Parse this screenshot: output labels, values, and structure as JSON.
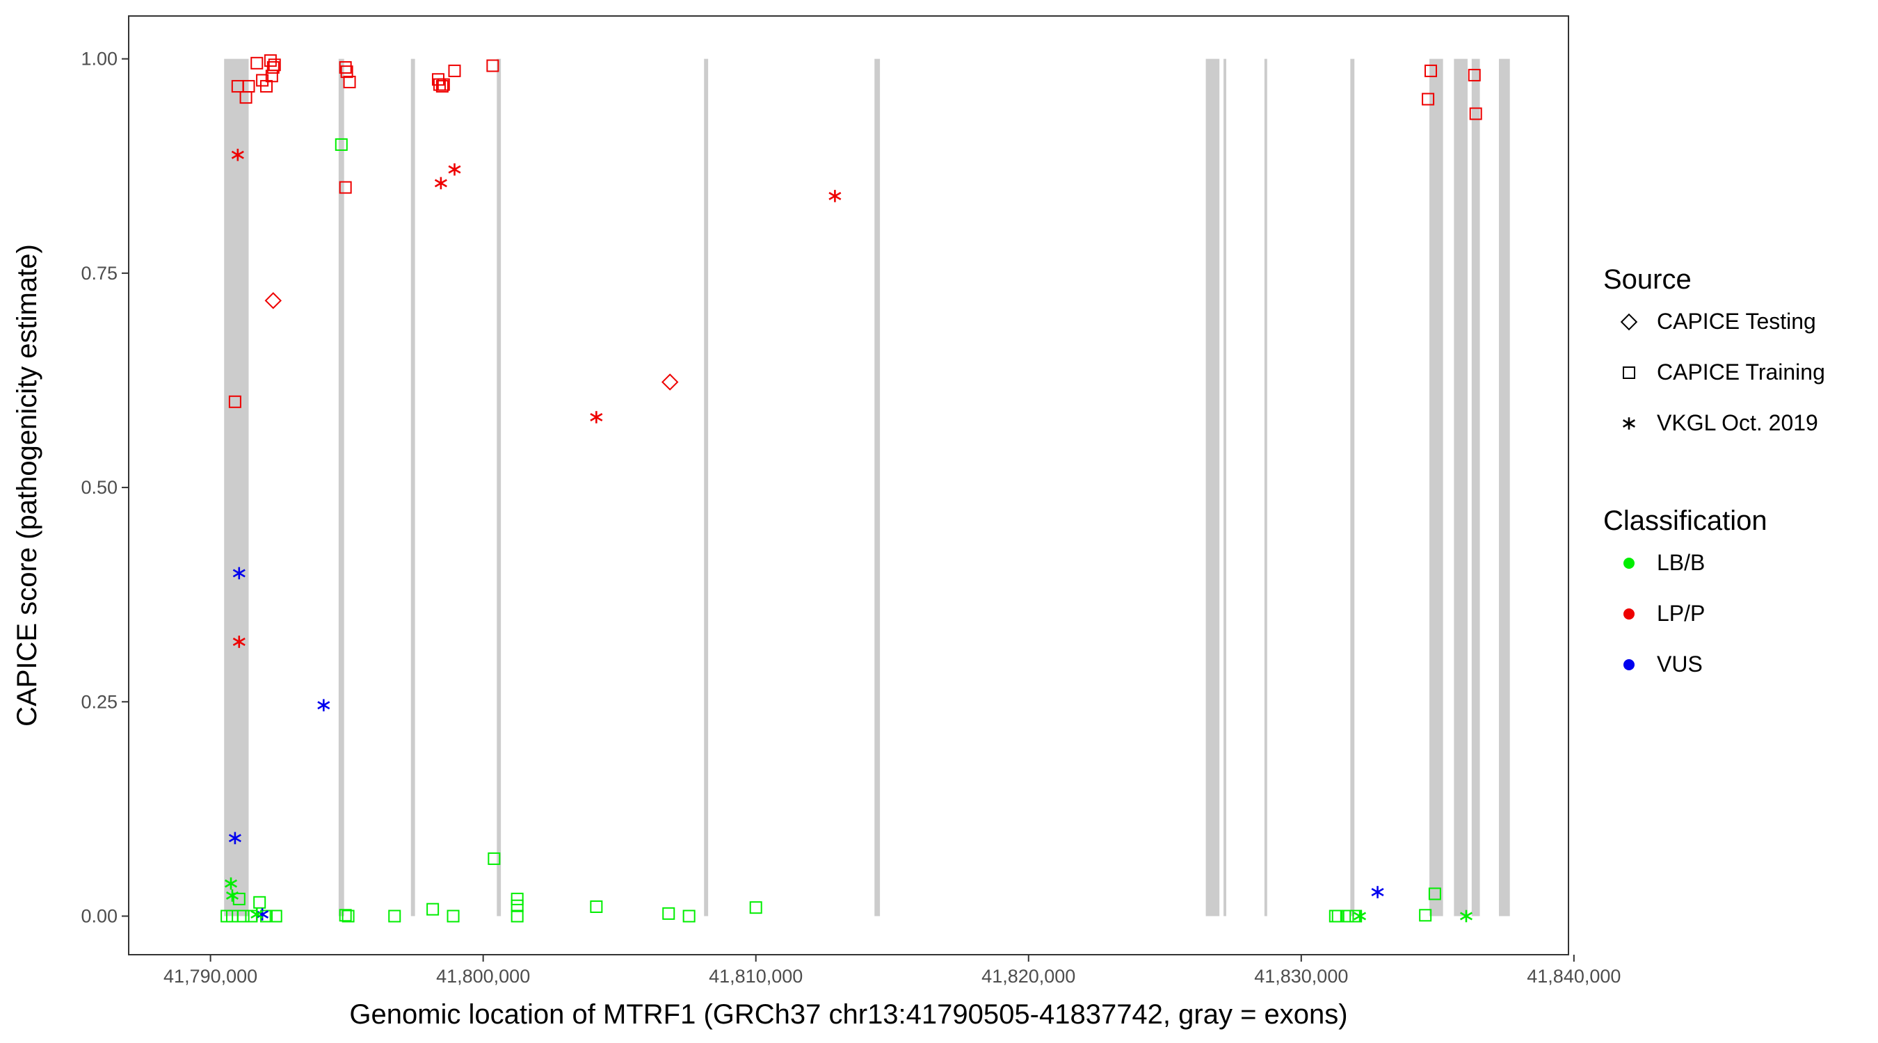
{
  "chart_data": {
    "type": "scatter",
    "xlabel": "Genomic location of MTRF1 (GRCh37 chr13:41790505-41837742, gray = exons)",
    "ylabel": "CAPICE score (pathogenicity estimate)",
    "xlim": [
      41787000,
      41839800
    ],
    "ylim": [
      -0.045,
      1.05
    ],
    "x_ticks": [
      41790000,
      41800000,
      41810000,
      41820000,
      41830000,
      41840000
    ],
    "x_tick_labels": [
      "41,790,000",
      "41,800,000",
      "41,810,000",
      "41,820,000",
      "41,830,000",
      "41,840,000"
    ],
    "y_ticks": [
      0,
      0.25,
      0.5,
      0.75,
      1.0
    ],
    "y_tick_labels": [
      "0.00",
      "0.25",
      "0.50",
      "0.75",
      "1.00"
    ],
    "grid": false,
    "exon_color": "#cccccc",
    "exons": [
      [
        41790500,
        41791400
      ],
      [
        41794700,
        41794900
      ],
      [
        41797350,
        41797500
      ],
      [
        41800500,
        41800650
      ],
      [
        41808100,
        41808250
      ],
      [
        41814350,
        41814550
      ],
      [
        41826500,
        41827000
      ],
      [
        41827150,
        41827250
      ],
      [
        41828650,
        41828750
      ],
      [
        41831800,
        41831950
      ],
      [
        41834700,
        41835200
      ],
      [
        41835600,
        41836100
      ],
      [
        41836250,
        41836550
      ],
      [
        41837250,
        41837650
      ]
    ],
    "legend": [
      {
        "title": "Source",
        "items": [
          {
            "label": "CAPICE Testing",
            "shape": "diamond"
          },
          {
            "label": "CAPICE Training",
            "shape": "square"
          },
          {
            "label": "VKGL Oct. 2019",
            "shape": "asterisk"
          }
        ]
      },
      {
        "title": "Classification",
        "items": [
          {
            "label": "LB/B",
            "color": "#00ee00"
          },
          {
            "label": "LP/P",
            "color": "#ee0000"
          },
          {
            "label": "VUS",
            "color": "#0000ee"
          }
        ]
      }
    ],
    "legend_position": "right",
    "class_colors": {
      "LB/B": "#00ee00",
      "LP/P": "#ee0000",
      "VUS": "#0000ee"
    },
    "points": [
      {
        "x": 41790900,
        "y": 0.6,
        "source": "CAPICE Training",
        "class": "LP/P"
      },
      {
        "x": 41791000,
        "y": 0.968,
        "source": "CAPICE Training",
        "class": "LP/P"
      },
      {
        "x": 41791300,
        "y": 0.955,
        "source": "CAPICE Training",
        "class": "LP/P"
      },
      {
        "x": 41791400,
        "y": 0.968,
        "source": "CAPICE Training",
        "class": "LP/P"
      },
      {
        "x": 41791700,
        "y": 0.995,
        "source": "CAPICE Training",
        "class": "LP/P"
      },
      {
        "x": 41791900,
        "y": 0.975,
        "source": "CAPICE Training",
        "class": "LP/P"
      },
      {
        "x": 41792050,
        "y": 0.968,
        "source": "CAPICE Training",
        "class": "LP/P"
      },
      {
        "x": 41792200,
        "y": 0.998,
        "source": "CAPICE Training",
        "class": "LP/P"
      },
      {
        "x": 41792250,
        "y": 0.98,
        "source": "CAPICE Training",
        "class": "LP/P"
      },
      {
        "x": 41792300,
        "y": 0.99,
        "source": "CAPICE Training",
        "class": "LP/P"
      },
      {
        "x": 41792350,
        "y": 0.993,
        "source": "CAPICE Training",
        "class": "LP/P"
      },
      {
        "x": 41794950,
        "y": 0.99,
        "source": "CAPICE Training",
        "class": "LP/P"
      },
      {
        "x": 41795000,
        "y": 0.985,
        "source": "CAPICE Training",
        "class": "LP/P"
      },
      {
        "x": 41795100,
        "y": 0.973,
        "source": "CAPICE Training",
        "class": "LP/P"
      },
      {
        "x": 41794950,
        "y": 0.85,
        "source": "CAPICE Training",
        "class": "LP/P"
      },
      {
        "x": 41798350,
        "y": 0.976,
        "source": "CAPICE Training",
        "class": "LP/P"
      },
      {
        "x": 41798400,
        "y": 0.97,
        "source": "CAPICE Training",
        "class": "LP/P"
      },
      {
        "x": 41798500,
        "y": 0.968,
        "source": "CAPICE Training",
        "class": "LP/P"
      },
      {
        "x": 41798550,
        "y": 0.97,
        "source": "CAPICE Training",
        "class": "LP/P"
      },
      {
        "x": 41798950,
        "y": 0.986,
        "source": "CAPICE Training",
        "class": "LP/P"
      },
      {
        "x": 41800350,
        "y": 0.992,
        "source": "CAPICE Training",
        "class": "LP/P"
      },
      {
        "x": 41834650,
        "y": 0.953,
        "source": "CAPICE Training",
        "class": "LP/P"
      },
      {
        "x": 41834750,
        "y": 0.986,
        "source": "CAPICE Training",
        "class": "LP/P"
      },
      {
        "x": 41836350,
        "y": 0.981,
        "source": "CAPICE Training",
        "class": "LP/P"
      },
      {
        "x": 41836400,
        "y": 0.936,
        "source": "CAPICE Training",
        "class": "LP/P"
      },
      {
        "x": 41794800,
        "y": 0.9,
        "source": "CAPICE Training",
        "class": "LB/B"
      },
      {
        "x": 41800400,
        "y": 0.067,
        "source": "CAPICE Training",
        "class": "LB/B"
      },
      {
        "x": 41790600,
        "y": 0.0,
        "source": "CAPICE Training",
        "class": "LB/B"
      },
      {
        "x": 41790800,
        "y": 0.0,
        "source": "CAPICE Training",
        "class": "LB/B"
      },
      {
        "x": 41791050,
        "y": 0.02,
        "source": "CAPICE Training",
        "class": "LB/B"
      },
      {
        "x": 41791200,
        "y": 0.0,
        "source": "CAPICE Training",
        "class": "LB/B"
      },
      {
        "x": 41791500,
        "y": 0.0,
        "source": "CAPICE Training",
        "class": "LB/B"
      },
      {
        "x": 41791800,
        "y": 0.016,
        "source": "CAPICE Training",
        "class": "LB/B"
      },
      {
        "x": 41792050,
        "y": 0.0,
        "source": "CAPICE Training",
        "class": "LB/B"
      },
      {
        "x": 41792400,
        "y": 0.0,
        "source": "CAPICE Training",
        "class": "LB/B"
      },
      {
        "x": 41794950,
        "y": 0.001,
        "source": "CAPICE Training",
        "class": "LB/B"
      },
      {
        "x": 41795050,
        "y": 0.0,
        "source": "CAPICE Training",
        "class": "LB/B"
      },
      {
        "x": 41796750,
        "y": 0.0,
        "source": "CAPICE Training",
        "class": "LB/B"
      },
      {
        "x": 41798150,
        "y": 0.008,
        "source": "CAPICE Training",
        "class": "LB/B"
      },
      {
        "x": 41798900,
        "y": 0.0,
        "source": "CAPICE Training",
        "class": "LB/B"
      },
      {
        "x": 41801250,
        "y": 0.02,
        "source": "CAPICE Training",
        "class": "LB/B"
      },
      {
        "x": 41801250,
        "y": 0.012,
        "source": "CAPICE Training",
        "class": "LB/B"
      },
      {
        "x": 41801250,
        "y": 0.0,
        "source": "CAPICE Training",
        "class": "LB/B"
      },
      {
        "x": 41804150,
        "y": 0.011,
        "source": "CAPICE Training",
        "class": "LB/B"
      },
      {
        "x": 41806800,
        "y": 0.003,
        "source": "CAPICE Training",
        "class": "LB/B"
      },
      {
        "x": 41807550,
        "y": 0.0,
        "source": "CAPICE Training",
        "class": "LB/B"
      },
      {
        "x": 41810000,
        "y": 0.01,
        "source": "CAPICE Training",
        "class": "LB/B"
      },
      {
        "x": 41831250,
        "y": 0.0,
        "source": "CAPICE Training",
        "class": "LB/B"
      },
      {
        "x": 41831350,
        "y": 0.0,
        "source": "CAPICE Training",
        "class": "LB/B"
      },
      {
        "x": 41831700,
        "y": 0.0,
        "source": "CAPICE Training",
        "class": "LB/B"
      },
      {
        "x": 41832000,
        "y": 0.0,
        "source": "CAPICE Training",
        "class": "LB/B"
      },
      {
        "x": 41834550,
        "y": 0.001,
        "source": "CAPICE Training",
        "class": "LB/B"
      },
      {
        "x": 41834900,
        "y": 0.026,
        "source": "CAPICE Training",
        "class": "LB/B"
      },
      {
        "x": 41792300,
        "y": 0.718,
        "source": "CAPICE Testing",
        "class": "LP/P"
      },
      {
        "x": 41806850,
        "y": 0.623,
        "source": "CAPICE Testing",
        "class": "LP/P"
      },
      {
        "x": 41791000,
        "y": 0.888,
        "source": "VKGL Oct. 2019",
        "class": "LP/P"
      },
      {
        "x": 41791050,
        "y": 0.32,
        "source": "VKGL Oct. 2019",
        "class": "LP/P"
      },
      {
        "x": 41798450,
        "y": 0.855,
        "source": "VKGL Oct. 2019",
        "class": "LP/P"
      },
      {
        "x": 41798950,
        "y": 0.871,
        "source": "VKGL Oct. 2019",
        "class": "LP/P"
      },
      {
        "x": 41804150,
        "y": 0.582,
        "source": "VKGL Oct. 2019",
        "class": "LP/P"
      },
      {
        "x": 41812900,
        "y": 0.84,
        "source": "VKGL Oct. 2019",
        "class": "LP/P"
      },
      {
        "x": 41791050,
        "y": 0.4,
        "source": "VKGL Oct. 2019",
        "class": "VUS"
      },
      {
        "x": 41794150,
        "y": 0.246,
        "source": "VKGL Oct. 2019",
        "class": "VUS"
      },
      {
        "x": 41790900,
        "y": 0.091,
        "source": "VKGL Oct. 2019",
        "class": "VUS"
      },
      {
        "x": 41791900,
        "y": 0.002,
        "source": "VKGL Oct. 2019",
        "class": "VUS"
      },
      {
        "x": 41832800,
        "y": 0.028,
        "source": "VKGL Oct. 2019",
        "class": "VUS"
      },
      {
        "x": 41790750,
        "y": 0.038,
        "source": "VKGL Oct. 2019",
        "class": "LB/B"
      },
      {
        "x": 41790800,
        "y": 0.024,
        "source": "VKGL Oct. 2019",
        "class": "LB/B"
      },
      {
        "x": 41791700,
        "y": 0.002,
        "source": "VKGL Oct. 2019",
        "class": "LB/B"
      },
      {
        "x": 41832150,
        "y": 0.0,
        "source": "VKGL Oct. 2019",
        "class": "LB/B"
      },
      {
        "x": 41836050,
        "y": 0.0,
        "source": "VKGL Oct. 2019",
        "class": "LB/B"
      }
    ]
  }
}
